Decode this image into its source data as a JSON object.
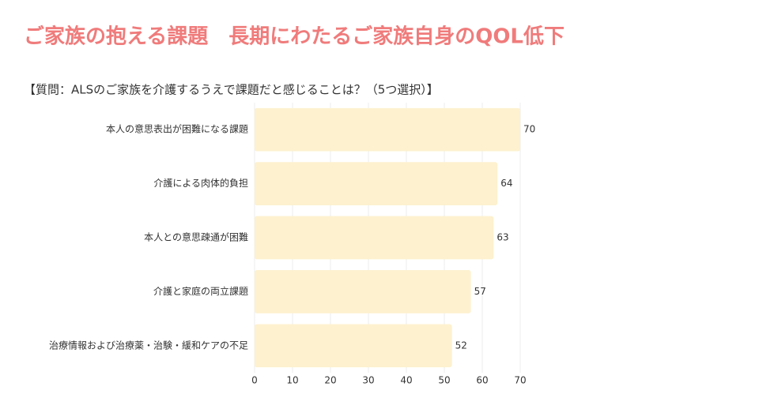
{
  "chart_data": {
    "type": "bar",
    "orientation": "horizontal",
    "title": "ご家族の抱える課題　長期にわたるご家族自身のQOL低下",
    "subtitle": "【質問：ALSのご家族を介護するうえで課題だと感じることは？（5つ選択）】",
    "categories": [
      "本人の意思表出が困難になる課題",
      "介護による肉体的負担",
      "本人との意思疎通が困難",
      "介護と家庭の両立課題",
      "治療情報および治療薬・治験・緩和ケアの不足"
    ],
    "values": [
      70,
      64,
      63,
      57,
      52
    ],
    "color": "#fdf1cf",
    "xlim": [
      0,
      70
    ],
    "xticks": [
      0,
      10,
      20,
      30,
      40,
      50,
      60,
      70
    ],
    "grid": true
  }
}
